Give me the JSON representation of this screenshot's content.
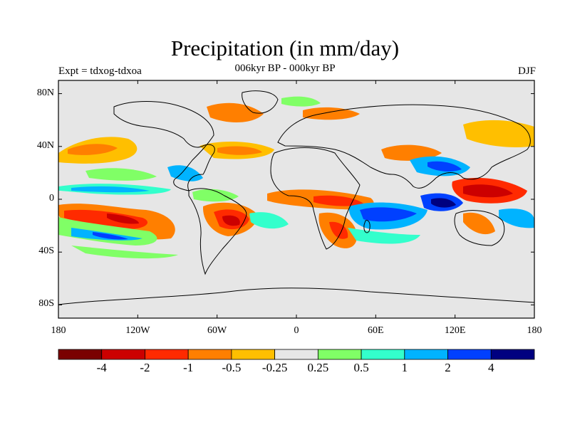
{
  "title": "Precipitation (in mm/day)",
  "subtitle": "006kyr BP - 000kyr BP",
  "experiment": "Expt = tdxog-tdxoa",
  "season": "DJF",
  "map": {
    "projection": "cylindrical equidistant",
    "lon_range": [
      -180,
      180
    ],
    "lat_range": [
      -90,
      90
    ],
    "background_color": "#e6e6e6",
    "lat_ticks": [
      "80N",
      "40N",
      "0",
      "40S",
      "80S"
    ],
    "lon_ticks": [
      "180",
      "120W",
      "60W",
      "0",
      "60E",
      "120E",
      "180"
    ]
  },
  "colorbar": {
    "colors": [
      "#7a0000",
      "#cc0000",
      "#ff2a00",
      "#ff7f00",
      "#ffbf00",
      "#e6e6e6",
      "#80ff66",
      "#33ffcc",
      "#00b3ff",
      "#0040ff",
      "#000080"
    ],
    "labels": [
      "-4",
      "-2",
      "-1",
      "-0.5",
      "-0.25",
      "0.25",
      "0.5",
      "1",
      "2",
      "4"
    ]
  },
  "chart_data": {
    "type": "heatmap",
    "title": "Precipitation (in mm/day)",
    "variable": "precipitation difference",
    "units": "mm/day",
    "contour_levels": [
      -4,
      -2,
      -1,
      -0.5,
      -0.25,
      0.25,
      0.5,
      1,
      2,
      4
    ],
    "regions": [
      {
        "desc": "central-east Pacific south of equator",
        "lon": [
          -180,
          -120
        ],
        "lat": [
          -25,
          -5
        ],
        "value_range": "-4 to -2"
      },
      {
        "desc": "South America (Brazil)",
        "lon": [
          -60,
          -35
        ],
        "lat": [
          -30,
          -10
        ],
        "value_range": "-2 to -4"
      },
      {
        "desc": "southern Africa",
        "lon": [
          20,
          40
        ],
        "lat": [
          -35,
          -15
        ],
        "value_range": "-1 to -4"
      },
      {
        "desc": "equatorial Africa",
        "lon": [
          -20,
          50
        ],
        "lat": [
          -5,
          5
        ],
        "value_range": "-0.5 to -2"
      },
      {
        "desc": "Arabian Sea / Indian Ocean band",
        "lon": [
          40,
          80
        ],
        "lat": [
          -15,
          -5
        ],
        "value_range": "1 to 4"
      },
      {
        "desc": "Maritime Continent",
        "lon": [
          100,
          140
        ],
        "lat": [
          -10,
          10
        ],
        "value_range": "mixed -4 to 4"
      },
      {
        "desc": "north Pacific storm track",
        "lon": [
          -170,
          -130
        ],
        "lat": [
          25,
          50
        ],
        "value_range": "-0.25 to -1"
      },
      {
        "desc": "south Pacific band",
        "lon": [
          -180,
          -120
        ],
        "lat": [
          -30,
          -20
        ],
        "value_range": "0.5 to 2"
      }
    ]
  }
}
